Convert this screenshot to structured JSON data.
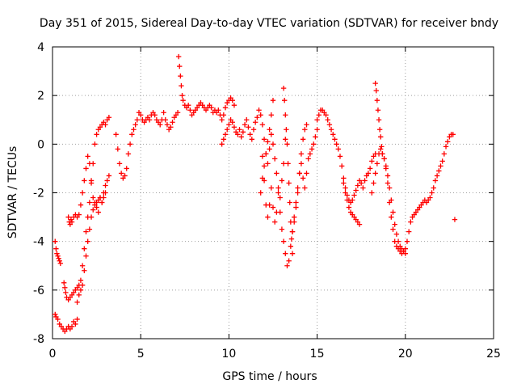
{
  "chart_data": {
    "type": "scatter",
    "title": "Day 351 of 2015, Sidereal Day-to-day VTEC variation (SDTVAR) for receiver bndy",
    "xlabel": "GPS time / hours",
    "ylabel": "SDTVAR / TECUs",
    "xlim": [
      0,
      25
    ],
    "ylim": [
      -8,
      4
    ],
    "xticks": [
      0,
      5,
      10,
      15,
      20,
      25
    ],
    "yticks": [
      -8,
      -6,
      -4,
      -2,
      0,
      2,
      4
    ],
    "xtick_labels": [
      "0",
      "5",
      "10",
      "15",
      "20",
      "25"
    ],
    "ytick_labels": [
      "-8",
      "-6",
      "-4",
      "-2",
      "0",
      "2",
      "4"
    ],
    "grid": true,
    "legend": "none",
    "marker": "+",
    "series": [
      {
        "name": "SDTVAR",
        "color": "#ff0000",
        "segments": [
          {
            "x": [
              0.15,
              0.2,
              0.25,
              0.3,
              0.35,
              0.4,
              0.45
            ],
            "y": [
              -4.0,
              -4.3,
              -4.5,
              -4.6,
              -4.7,
              -4.8,
              -4.9
            ]
          },
          {
            "x": [
              0.15,
              0.2,
              0.3,
              0.4,
              0.5,
              0.6,
              0.7,
              0.8,
              0.9,
              1.0,
              1.1,
              1.2,
              1.3,
              1.4
            ],
            "y": [
              -7.0,
              -7.1,
              -7.2,
              -7.4,
              -7.5,
              -7.6,
              -7.7,
              -7.6,
              -7.5,
              -7.6,
              -7.5,
              -7.3,
              -7.4,
              -7.2
            ]
          },
          {
            "x": [
              0.65,
              0.7,
              0.75,
              0.8,
              0.9,
              1.0,
              1.1,
              1.2,
              1.3,
              1.4,
              1.5,
              1.6,
              1.7,
              1.8,
              1.9,
              2.0,
              2.1,
              2.2,
              2.3,
              2.4,
              2.5,
              2.6,
              2.7,
              2.8,
              2.9,
              3.0,
              3.1,
              3.2
            ],
            "y": [
              -5.7,
              -5.9,
              -6.1,
              -6.3,
              -6.4,
              -6.3,
              -6.2,
              -6.1,
              -6.0,
              -5.9,
              -5.8,
              -5.6,
              -5.0,
              -4.3,
              -3.6,
              -3.0,
              -2.4,
              -1.6,
              -0.8,
              0.0,
              0.4,
              0.6,
              0.7,
              0.8,
              0.9,
              0.8,
              1.0,
              1.1
            ]
          },
          {
            "x": [
              0.9,
              0.95,
              1.0,
              1.05,
              1.1,
              1.2,
              1.3,
              1.4,
              1.5,
              1.6,
              1.7,
              1.8,
              1.9,
              2.0,
              2.1,
              2.2,
              2.3,
              2.4,
              2.5,
              2.6,
              2.7,
              2.8,
              2.9,
              3.0,
              3.1,
              3.2
            ],
            "y": [
              -3.0,
              -3.2,
              -3.3,
              -3.1,
              -3.2,
              -3.0,
              -2.9,
              -3.0,
              -2.9,
              -2.5,
              -2.0,
              -1.5,
              -1.0,
              -0.5,
              -0.8,
              -1.5,
              -2.2,
              -2.4,
              -2.6,
              -2.8,
              -2.2,
              -2.4,
              -2.0,
              -1.7,
              -1.5,
              -1.3
            ]
          },
          {
            "x": [
              1.4,
              1.5,
              1.6,
              1.7,
              1.8,
              1.9,
              2.0,
              2.1,
              2.2,
              2.3,
              2.4,
              2.5,
              2.6,
              2.7,
              2.8,
              2.9,
              3.0
            ],
            "y": [
              -6.5,
              -6.2,
              -6.0,
              -5.8,
              -5.2,
              -4.6,
              -4.0,
              -3.5,
              -3.0,
              -2.7,
              -2.5,
              -2.4,
              -2.3,
              -2.2,
              -2.4,
              -2.2,
              -2.0
            ]
          },
          {
            "x": [
              3.6,
              3.7,
              3.8,
              3.9,
              4.0,
              4.1,
              4.2,
              4.3,
              4.4,
              4.5,
              4.6,
              4.7,
              4.8,
              4.9,
              5.0,
              5.1,
              5.2,
              5.3,
              5.4,
              5.5,
              5.6,
              5.7,
              5.8,
              5.9,
              6.0,
              6.1,
              6.2,
              6.3,
              6.4,
              6.5,
              6.6,
              6.7,
              6.8,
              6.9,
              7.0,
              7.1
            ],
            "y": [
              0.4,
              -0.2,
              -0.8,
              -1.2,
              -1.4,
              -1.3,
              -1.0,
              -0.4,
              0.0,
              0.4,
              0.6,
              0.8,
              1.0,
              1.3,
              1.2,
              1.0,
              0.9,
              1.0,
              1.1,
              1.0,
              1.2,
              1.3,
              1.2,
              1.0,
              0.9,
              0.8,
              1.0,
              1.3,
              1.0,
              0.8,
              0.6,
              0.7,
              0.9,
              1.1,
              1.2,
              1.3
            ]
          },
          {
            "x": [
              7.15,
              7.2,
              7.25,
              7.3,
              7.35,
              7.4,
              7.5,
              7.6,
              7.7,
              7.8,
              7.9,
              8.0,
              8.1,
              8.2,
              8.3,
              8.4,
              8.5,
              8.6,
              8.7,
              8.8,
              8.9,
              9.0,
              9.1,
              9.2,
              9.3,
              9.4,
              9.5,
              9.6,
              9.7,
              9.8,
              9.9,
              10.0,
              10.1,
              10.2,
              10.3
            ],
            "y": [
              3.6,
              3.2,
              2.8,
              2.4,
              2.0,
              1.8,
              1.6,
              1.5,
              1.6,
              1.4,
              1.2,
              1.3,
              1.4,
              1.5,
              1.6,
              1.7,
              1.6,
              1.5,
              1.4,
              1.5,
              1.6,
              1.5,
              1.3,
              1.4,
              1.3,
              1.4,
              1.2,
              1.0,
              1.2,
              1.5,
              1.7,
              1.8,
              1.9,
              1.8,
              1.6
            ]
          },
          {
            "x": [
              9.6,
              9.7,
              9.8,
              9.9,
              10.0,
              10.1,
              10.2,
              10.3,
              10.4,
              10.5,
              10.6,
              10.7,
              10.8,
              10.9,
              11.0,
              11.1,
              11.2,
              11.3,
              11.4,
              11.5,
              11.6,
              11.7,
              11.8,
              11.9,
              12.0,
              12.1,
              12.2,
              12.3,
              12.4,
              12.5,
              12.6,
              12.7,
              12.8,
              12.9,
              13.0,
              13.1,
              13.2
            ],
            "y": [
              0.0,
              0.2,
              0.4,
              0.6,
              0.8,
              1.0,
              0.9,
              0.7,
              0.5,
              0.4,
              0.6,
              0.3,
              0.5,
              0.8,
              1.0,
              0.7,
              0.4,
              0.2,
              0.6,
              0.9,
              1.1,
              1.4,
              1.2,
              0.8,
              0.2,
              -0.4,
              -0.8,
              -0.2,
              0.4,
              0.0,
              -0.6,
              -1.2,
              -1.8,
              -2.2,
              -1.5,
              -0.8,
              0.2
            ]
          },
          {
            "x": [
              11.9,
              12.0,
              12.1,
              12.2,
              12.3,
              12.4,
              12.5,
              12.6,
              12.7,
              12.8,
              12.9,
              13.0,
              13.1,
              13.2,
              13.3,
              13.4,
              13.5,
              13.6,
              13.7,
              13.8,
              13.9,
              14.0,
              14.1,
              14.2,
              14.3,
              14.4
            ],
            "y": [
              -0.5,
              -1.5,
              -2.5,
              -3.0,
              -2.5,
              -1.8,
              -2.6,
              -3.2,
              -2.8,
              -2.0,
              -2.8,
              -3.5,
              -4.0,
              -4.5,
              -5.0,
              -4.8,
              -4.2,
              -3.6,
              -3.2,
              -2.6,
              -2.0,
              -1.2,
              -0.4,
              0.2,
              0.6,
              0.8
            ]
          },
          {
            "x": [
              11.8,
              11.9,
              12.0,
              12.1,
              12.2,
              12.3,
              12.4,
              12.5
            ],
            "y": [
              -2.0,
              -1.4,
              -0.9,
              -0.4,
              0.1,
              0.6,
              1.2,
              1.8
            ]
          },
          {
            "x": [
              13.1,
              13.15,
              13.2,
              13.25,
              13.3,
              13.35,
              13.4,
              13.45,
              13.5,
              13.55,
              13.6
            ],
            "y": [
              2.3,
              1.8,
              1.2,
              0.6,
              0.0,
              -0.8,
              -1.6,
              -2.4,
              -3.2,
              -3.9,
              -4.5
            ]
          },
          {
            "x": [
              13.6,
              13.7,
              13.8,
              13.9,
              14.0,
              14.1,
              14.2,
              14.3,
              14.4,
              14.5,
              14.6,
              14.7,
              14.8,
              14.9,
              15.0
            ],
            "y": [
              -3.6,
              -3.0,
              -2.4,
              -1.8,
              -1.2,
              -0.8,
              -1.4,
              -1.8,
              -1.2,
              -0.6,
              -0.4,
              -0.2,
              0.0,
              0.3,
              0.6
            ]
          },
          {
            "x": [
              15.0,
              15.1,
              15.2,
              15.3,
              15.4,
              15.5,
              15.6,
              15.7,
              15.8,
              15.9,
              16.0,
              16.1,
              16.2,
              16.3,
              16.4,
              16.5,
              16.6,
              16.7,
              16.8,
              16.9,
              17.0,
              17.1,
              17.2,
              17.3,
              17.4,
              17.5,
              17.6,
              17.7,
              17.8,
              17.9,
              18.0,
              18.1,
              18.2,
              18.3
            ],
            "y": [
              1.0,
              1.2,
              1.4,
              1.4,
              1.3,
              1.2,
              1.0,
              0.8,
              0.6,
              0.4,
              0.2,
              0.0,
              -0.2,
              -0.5,
              -0.9,
              -1.4,
              -1.8,
              -2.1,
              -2.3,
              -2.4,
              -2.3,
              -2.1,
              -1.9,
              -1.7,
              -1.5,
              -1.6,
              -1.8,
              -1.5,
              -1.3,
              -1.2,
              -1.0,
              -0.7,
              -0.5,
              -0.4
            ]
          },
          {
            "x": [
              16.5,
              16.6,
              16.7,
              16.8,
              16.9,
              17.0,
              17.1,
              17.2,
              17.3,
              17.4
            ],
            "y": [
              -1.6,
              -2.0,
              -2.3,
              -2.6,
              -2.8,
              -2.9,
              -3.0,
              -3.1,
              -3.2,
              -3.3
            ]
          },
          {
            "x": [
              18.3,
              18.35,
              18.4,
              18.45,
              18.5,
              18.55,
              18.6,
              18.65,
              18.7,
              18.8,
              18.9,
              19.0,
              19.1,
              19.2,
              19.3,
              19.4,
              19.5,
              19.6,
              19.7,
              19.8,
              19.9,
              20.0,
              20.1,
              20.2,
              20.3,
              20.4,
              20.5,
              20.6,
              20.7,
              20.8,
              20.9,
              21.0,
              21.1,
              21.2,
              21.3,
              21.4,
              21.5,
              21.6,
              21.7,
              21.8,
              21.9,
              22.0,
              22.1,
              22.2,
              22.3,
              22.4,
              22.5,
              22.6,
              22.7,
              22.8
            ],
            "y": [
              2.5,
              2.2,
              1.8,
              1.4,
              1.0,
              0.6,
              0.3,
              -0.1,
              -0.4,
              -0.6,
              -1.0,
              -1.6,
              -2.4,
              -3.0,
              -3.5,
              -4.0,
              -4.2,
              -4.3,
              -4.4,
              -4.5,
              -4.4,
              -4.3,
              -4.0,
              -3.6,
              -3.2,
              -3.0,
              -2.9,
              -2.8,
              -2.7,
              -2.6,
              -2.5,
              -2.4,
              -2.3,
              -2.4,
              -2.3,
              -2.2,
              -2.0,
              -1.8,
              -1.5,
              -1.3,
              -1.1,
              -0.9,
              -0.7,
              -0.4,
              -0.1,
              0.1,
              0.3,
              0.4,
              0.4,
              -3.1
            ]
          },
          {
            "x": [
              18.1,
              18.2,
              18.3,
              18.4,
              18.5,
              18.6,
              18.7,
              18.8,
              18.9,
              19.0,
              19.1,
              19.2,
              19.3,
              19.4,
              19.5,
              19.6,
              19.7,
              19.8,
              19.9,
              20.0
            ],
            "y": [
              -2.0,
              -1.6,
              -1.2,
              -0.8,
              -0.4,
              -0.2,
              -0.4,
              -0.6,
              -0.9,
              -1.3,
              -1.8,
              -2.3,
              -2.8,
              -3.3,
              -3.7,
              -4.0,
              -4.2,
              -4.3,
              -4.4,
              -4.5
            ]
          }
        ]
      }
    ]
  }
}
